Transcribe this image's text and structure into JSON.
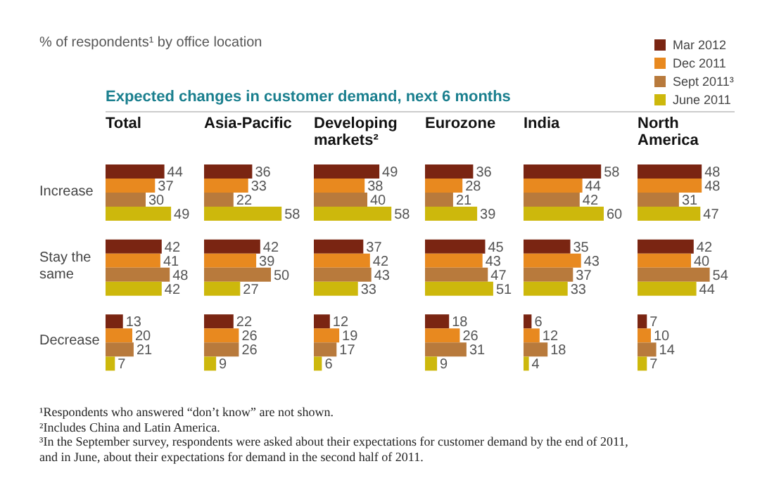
{
  "chart_data": [
    {
      "type": "bar",
      "orientation": "horizontal",
      "title": "Total",
      "subtitle": "% of respondents¹ by office location",
      "legend": "top right",
      "data_labels": true,
      "tick_labels": "y",
      "categories": [
        "Increase",
        "Stay the same",
        "Decrease"
      ],
      "series": [
        {
          "name": "Mar 2012",
          "color": "#7a2512",
          "values": [
            44,
            42,
            13
          ]
        },
        {
          "name": "Dec 2011",
          "color": "#e8891f",
          "values": [
            37,
            41,
            20
          ]
        },
        {
          "name": "Sept 2011³",
          "color": "#b87a3c",
          "values": [
            30,
            48,
            21
          ]
        },
        {
          "name": "June 2011",
          "color": "#cdb80c",
          "values": [
            49,
            42,
            7
          ]
        }
      ],
      "annotations": [
        "Expected changes in customer demand, next 6 months",
        "¹Respondents who answered “don’t know” are not shown.",
        "²Includes China and Latin America.",
        "³In the September survey, respondents were asked about their expectations for customer demand by the end of 2011, and in June, about their expectations for demand in the second half of 2011."
      ]
    },
    {
      "type": "bar",
      "orientation": "horizontal",
      "title": "Asia-Pacific",
      "data_labels": true,
      "tick_labels": false,
      "categories": [
        null,
        null,
        null
      ],
      "series": [
        {
          "color": "#7a2512",
          "values": [
            36,
            42,
            22
          ]
        },
        {
          "color": "#e8891f",
          "values": [
            33,
            39,
            26
          ]
        },
        {
          "color": "#b87a3c",
          "values": [
            22,
            50,
            26
          ]
        },
        {
          "color": "#cdb80c",
          "values": [
            58,
            27,
            9
          ]
        }
      ]
    },
    {
      "type": "bar",
      "orientation": "horizontal",
      "title": "Developing markets²",
      "data_labels": true,
      "tick_labels": false,
      "categories": [
        null,
        null,
        null
      ],
      "series": [
        {
          "color": "#7a2512",
          "values": [
            49,
            37,
            12
          ]
        },
        {
          "color": "#e8891f",
          "values": [
            38,
            42,
            19
          ]
        },
        {
          "color": "#b87a3c",
          "values": [
            40,
            43,
            17
          ]
        },
        {
          "color": "#cdb80c",
          "values": [
            58,
            33,
            6
          ]
        }
      ]
    },
    {
      "type": "bar",
      "orientation": "horizontal",
      "title": "Eurozone",
      "data_labels": true,
      "tick_labels": false,
      "categories": [
        null,
        null,
        null
      ],
      "series": [
        {
          "color": "#7a2512",
          "values": [
            36,
            45,
            18
          ]
        },
        {
          "color": "#e8891f",
          "values": [
            28,
            43,
            26
          ]
        },
        {
          "color": "#b87a3c",
          "values": [
            21,
            47,
            31
          ]
        },
        {
          "color": "#cdb80c",
          "values": [
            39,
            51,
            9
          ]
        }
      ]
    },
    {
      "type": "bar",
      "orientation": "horizontal",
      "title": "India",
      "data_labels": true,
      "tick_labels": false,
      "categories": [
        null,
        null,
        null
      ],
      "series": [
        {
          "color": "#7a2512",
          "values": [
            58,
            35,
            6
          ]
        },
        {
          "color": "#e8891f",
          "values": [
            44,
            43,
            12
          ]
        },
        {
          "color": "#b87a3c",
          "values": [
            42,
            37,
            18
          ]
        },
        {
          "color": "#cdb80c",
          "values": [
            60,
            33,
            4
          ]
        }
      ]
    },
    {
      "type": "bar",
      "orientation": "horizontal",
      "title": "North America",
      "data_labels": true,
      "tick_labels": false,
      "categories": [
        null,
        null,
        null
      ],
      "series": [
        {
          "color": "#7a2512",
          "values": [
            48,
            42,
            7
          ]
        },
        {
          "color": "#e8891f",
          "values": [
            48,
            40,
            10
          ]
        },
        {
          "color": "#b87a3c",
          "values": [
            31,
            54,
            14
          ]
        },
        {
          "color": "#cdb80c",
          "values": [
            47,
            44,
            7
          ]
        }
      ]
    }
  ]
}
